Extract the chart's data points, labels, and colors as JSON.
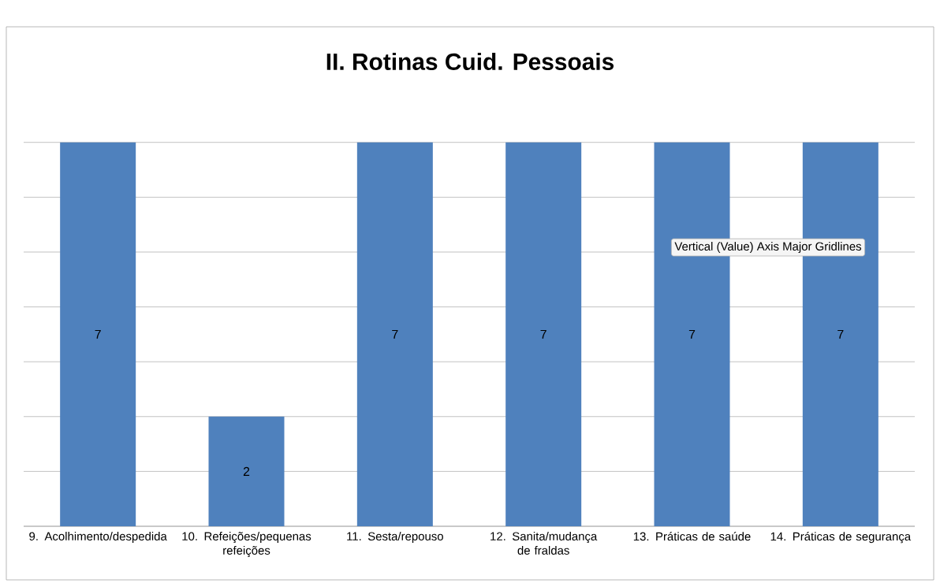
{
  "chart_data": {
    "type": "bar",
    "title": "II. Rotinas Cuid. Pessoais",
    "categories": [
      "9. Acolhimento/despedida",
      "10. Refeições/pequenas refeições",
      "11. Sesta/repouso",
      "12. Sanita/mudança de fraldas",
      "13. Práticas de saúde",
      "14. Práticas de segurança"
    ],
    "values": [
      7,
      2,
      7,
      7,
      7,
      7
    ],
    "value_labels": [
      "7",
      "2",
      "7",
      "7",
      "7",
      "7"
    ],
    "color": "#4f81bd",
    "grid": "y",
    "tick_labels": "x",
    "annotations": [
      "Vertical (Value) Axis Major Gridlines"
    ]
  }
}
